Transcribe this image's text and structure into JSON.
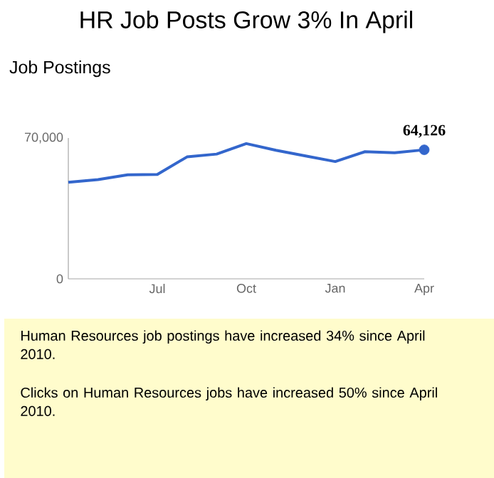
{
  "chart_data": {
    "type": "line",
    "title": "HR Job Posts Grow 3% In April",
    "subtitle": "Job Postings",
    "categories": [
      null,
      null,
      null,
      "Jul",
      null,
      null,
      "Oct",
      null,
      null,
      "Jan",
      null,
      null,
      "Apr"
    ],
    "series": [
      {
        "color": "#3366cc",
        "values": [
          48000,
          49300,
          51700,
          51900,
          60600,
          62000,
          67200,
          63900,
          61100,
          58300,
          63200,
          62700,
          64126
        ],
        "value_labels": [
          null,
          null,
          null,
          null,
          null,
          null,
          null,
          null,
          null,
          null,
          null,
          null,
          "64,126"
        ]
      }
    ],
    "ylim": [
      0,
      70000
    ],
    "yticks": [
      0,
      {
        "value": 70000,
        "label": "70,000"
      }
    ],
    "annotations": [
      "Human Resources job postings have increased 34% since April 2010.",
      "Clicks on Human Resources jobs have increased 50% since April 2010."
    ]
  }
}
